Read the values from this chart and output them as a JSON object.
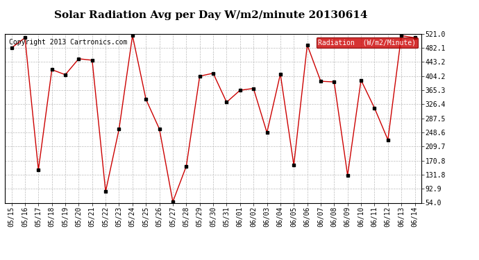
{
  "title": "Solar Radiation Avg per Day W/m2/minute 20130614",
  "copyright": "Copyright 2013 Cartronics.com",
  "legend_label": "Radiation  (W/m2/Minute)",
  "dates": [
    "05/15",
    "05/16",
    "05/17",
    "05/18",
    "05/19",
    "05/20",
    "05/21",
    "05/22",
    "05/23",
    "05/24",
    "05/25",
    "05/26",
    "05/27",
    "05/28",
    "05/29",
    "05/30",
    "05/31",
    "06/01",
    "06/02",
    "06/03",
    "06/04",
    "06/05",
    "06/06",
    "06/07",
    "06/08",
    "06/09",
    "06/10",
    "06/11",
    "06/12",
    "06/13",
    "06/14"
  ],
  "values": [
    482,
    510,
    145,
    422,
    408,
    452,
    448,
    85,
    258,
    516,
    340,
    258,
    57,
    155,
    404,
    412,
    332,
    365,
    370,
    248,
    410,
    158,
    490,
    390,
    388,
    130,
    393,
    316,
    228,
    516,
    510
  ],
  "yticks": [
    54.0,
    92.9,
    131.8,
    170.8,
    209.7,
    248.6,
    287.5,
    326.4,
    365.3,
    404.2,
    443.2,
    482.1,
    521.0
  ],
  "ymin": 54.0,
  "ymax": 521.0,
  "line_color": "#cc0000",
  "marker_color": "#000000",
  "bg_color": "#ffffff",
  "grid_color": "#bbbbbb",
  "legend_bg": "#cc0000",
  "legend_fg": "#ffffff",
  "title_fontsize": 11,
  "copyright_fontsize": 7,
  "tick_fontsize": 7,
  "legend_fontsize": 7
}
